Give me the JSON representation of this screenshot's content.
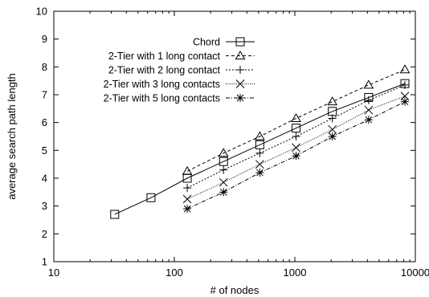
{
  "chart_data": {
    "type": "line",
    "xlabel": "# of nodes",
    "ylabel": "average search path length",
    "x_scale": "log",
    "xlim": [
      10,
      10000
    ],
    "ylim": [
      1,
      10
    ],
    "x_ticks": [
      10,
      100,
      1000,
      10000
    ],
    "x_tick_labels": [
      "10",
      "100",
      "1000",
      "10000"
    ],
    "y_ticks": [
      1,
      2,
      3,
      4,
      5,
      6,
      7,
      8,
      9,
      10
    ],
    "y_tick_labels": [
      "1",
      "2",
      "3",
      "4",
      "5",
      "6",
      "7",
      "8",
      "9",
      "10"
    ],
    "grid": false,
    "legend_position": "top-right",
    "series": [
      {
        "name": "Chord",
        "marker": "square",
        "dash": "solid",
        "x": [
          32,
          64,
          128,
          256,
          512,
          1024,
          2048,
          4096,
          8192
        ],
        "y": [
          2.7,
          3.3,
          4.0,
          4.6,
          5.2,
          5.8,
          6.4,
          6.9,
          7.4
        ]
      },
      {
        "name": "2-Tier with 1 long contact",
        "marker": "triangle",
        "dash": "dashed",
        "x": [
          128,
          256,
          512,
          1024,
          2048,
          4096,
          8192
        ],
        "y": [
          4.25,
          4.9,
          5.5,
          6.15,
          6.75,
          7.35,
          7.9
        ]
      },
      {
        "name": "2-Tier with 2 long contact",
        "marker": "plus",
        "dash": "dotted",
        "x": [
          128,
          256,
          512,
          1024,
          2048,
          4096,
          8192
        ],
        "y": [
          3.65,
          4.3,
          4.9,
          5.5,
          6.15,
          6.8,
          7.35
        ]
      },
      {
        "name": "2-Tier with 3 long contacts",
        "marker": "x",
        "dash": "finedot",
        "x": [
          128,
          256,
          512,
          1024,
          2048,
          4096,
          8192
        ],
        "y": [
          3.25,
          3.85,
          4.5,
          5.1,
          5.75,
          6.45,
          6.95
        ]
      },
      {
        "name": "2-Tier with 5 long contacts",
        "marker": "star",
        "dash": "dashdot",
        "x": [
          128,
          256,
          512,
          1024,
          2048,
          4096,
          8192
        ],
        "y": [
          2.9,
          3.5,
          4.2,
          4.8,
          5.5,
          6.1,
          6.75
        ]
      }
    ]
  }
}
